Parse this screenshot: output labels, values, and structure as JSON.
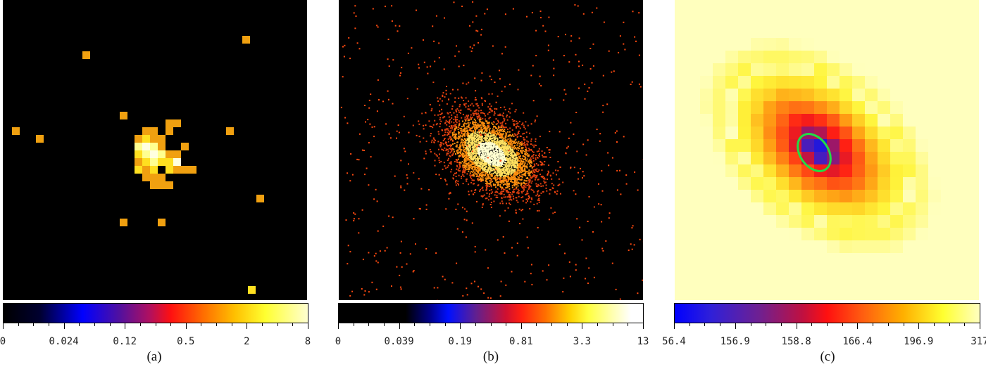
{
  "panels": [
    {
      "id": "a",
      "caption": "(a)",
      "colorbar_ticks": [
        "0",
        "0.024",
        "0.12",
        "0.5",
        "2",
        "8"
      ],
      "colormap": "heat"
    },
    {
      "id": "b",
      "caption": "(b)",
      "colorbar_ticks": [
        "0",
        "0.039",
        "0.19",
        "0.81",
        "3.3",
        "13"
      ],
      "colormap": "heat"
    },
    {
      "id": "c",
      "caption": "(c)",
      "colorbar_ticks": [
        "56.4",
        "156.9",
        "158.8",
        "166.4",
        "196.9",
        "317"
      ],
      "colormap": "heat",
      "overlay": "green-ellipse"
    }
  ],
  "colors": {
    "background": "#000000",
    "ellipse": "#22dd44"
  }
}
